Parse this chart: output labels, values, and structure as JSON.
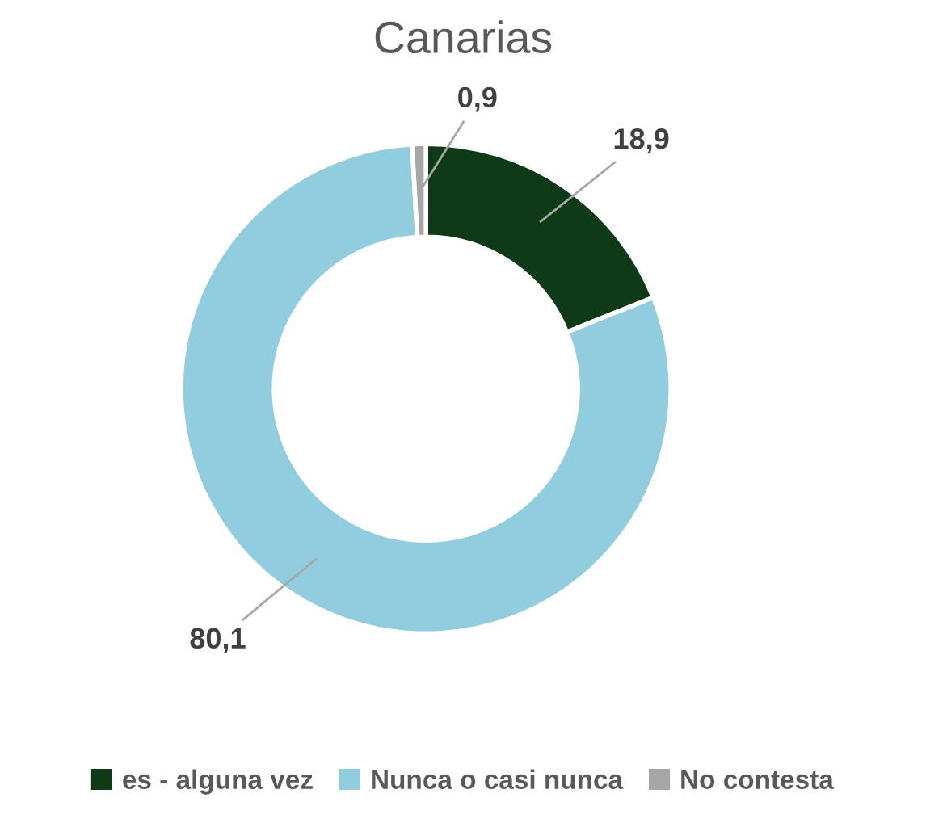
{
  "chart_data": {
    "type": "donut",
    "title": "Canarias",
    "categories": [
      "es - alguna vez",
      "Nunca o casi nunca",
      "No contesta"
    ],
    "values": [
      18.9,
      80.1,
      0.9
    ],
    "colors": [
      "#0f3a17",
      "#92cddf",
      "#a6a6a6"
    ],
    "value_labels": [
      "18,9",
      "80,1",
      "0,9"
    ],
    "legend": "bottom"
  }
}
